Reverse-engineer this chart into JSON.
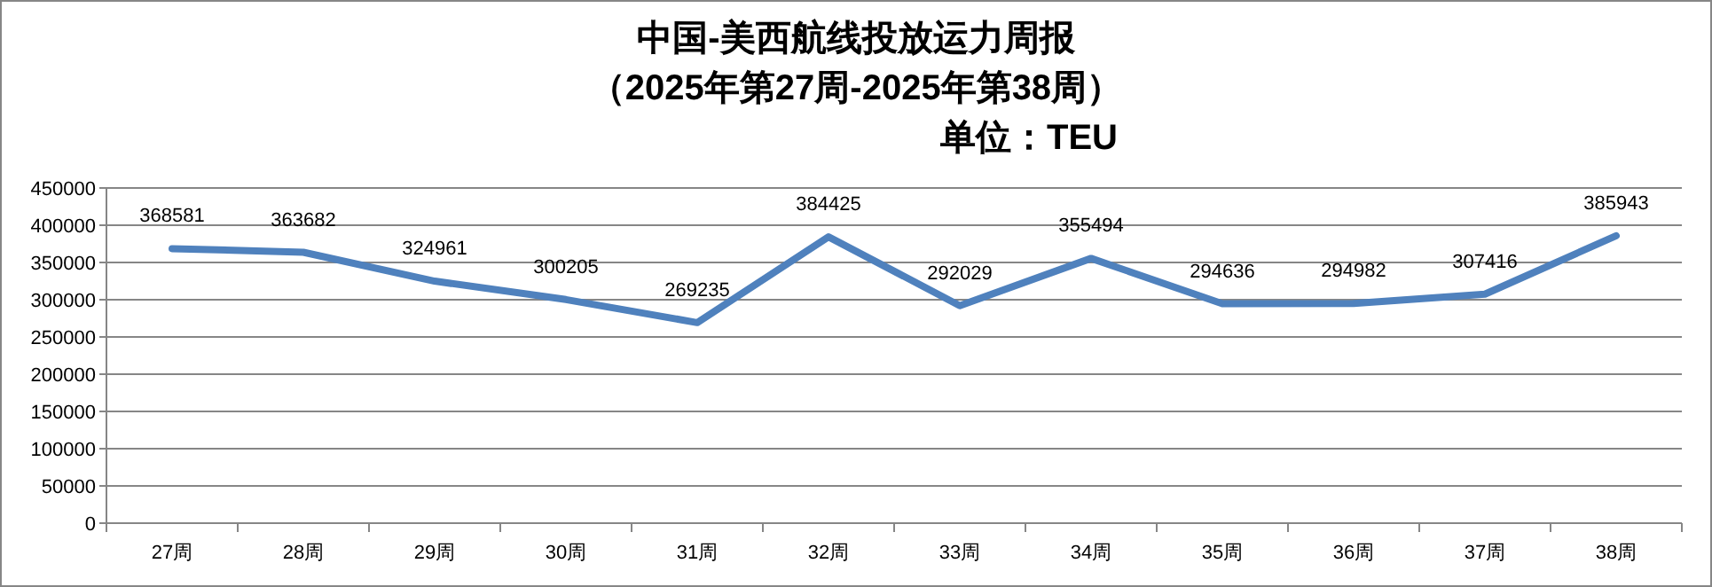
{
  "chart_data": {
    "type": "line",
    "title": "中国-美西航线投放运力周报",
    "subtitle": "（2025年第27周-2025年第38周）",
    "annotations": [
      "单位：TEU"
    ],
    "categories": [
      "27周",
      "28周",
      "29周",
      "30周",
      "31周",
      "32周",
      "33周",
      "34周",
      "35周",
      "36周",
      "37周",
      "38周"
    ],
    "series": [
      {
        "color": "#4f81bd",
        "values": [
          368581,
          363682,
          324961,
          300205,
          269235,
          384425,
          292029,
          355494,
          294636,
          294982,
          307416,
          385943
        ]
      }
    ],
    "ylim": [
      0,
      450000
    ],
    "yticks": [
      0,
      50000,
      100000,
      150000,
      200000,
      250000,
      300000,
      350000,
      400000,
      450000
    ],
    "grid": "y",
    "data_labels": true,
    "marker": "none",
    "line_style": "solid"
  }
}
